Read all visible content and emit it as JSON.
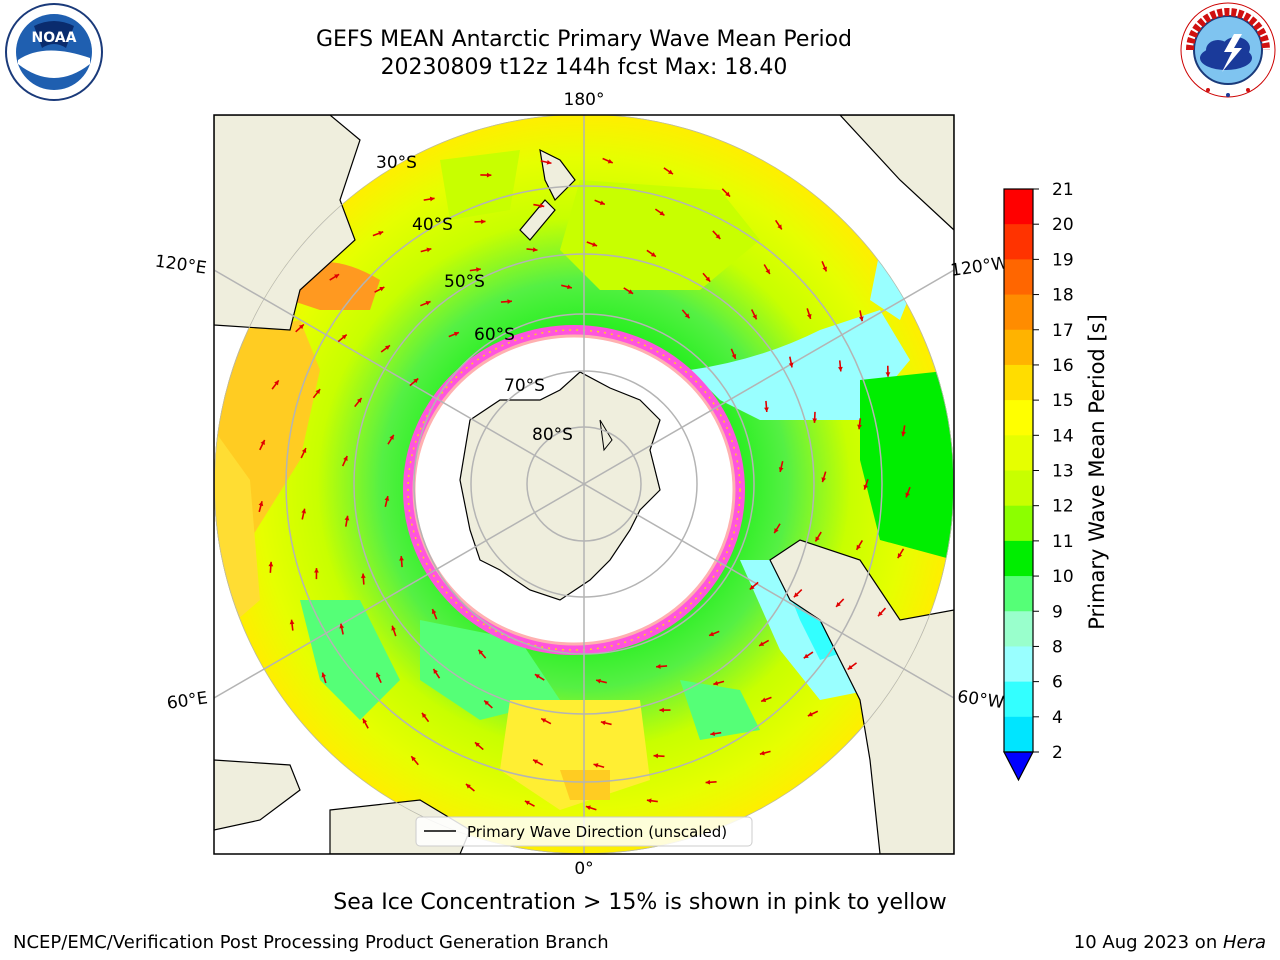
{
  "title": {
    "line1": "GEFS MEAN Antarctic Primary Wave Mean Period",
    "line2": "20230809 t12z 144h fcst   Max: 18.40"
  },
  "logos": {
    "left": {
      "icon": "noaa-logo",
      "text": "NOAA",
      "ring_text": "NATIONAL OCEANIC AND ATMOSPHERIC ADMINISTRATION · U.S. DEPARTMENT OF COMMERCE"
    },
    "right": {
      "icon": "nws-logo",
      "ring_text": "NATIONAL WEATHER SERVICE"
    }
  },
  "map": {
    "projection": "south-polar-stereographic",
    "longitude_labels": [
      "180°",
      "120°E",
      "120°W",
      "60°E",
      "60°W",
      "0°"
    ],
    "latitude_labels": [
      "30°S",
      "40°S",
      "50°S",
      "60°S",
      "70°S",
      "80°S"
    ],
    "legend": "Primary Wave Direction (unscaled)"
  },
  "colorbar": {
    "label": "Primary Wave Mean Period [s]",
    "ticks": [
      "21",
      "20",
      "19",
      "18",
      "17",
      "16",
      "15",
      "14",
      "13",
      "12",
      "11",
      "10",
      "9",
      "8",
      "6",
      "4",
      "2"
    ],
    "colors": [
      "#ff0000",
      "#ff3300",
      "#ff6600",
      "#ff8c00",
      "#ffb300",
      "#ffdd00",
      "#ffff00",
      "#e6ff00",
      "#c8ff00",
      "#8cff00",
      "#00ee00",
      "#55ff77",
      "#99ffcc",
      "#99ffff",
      "#33ffff",
      "#00e5ff",
      "#0099ff",
      "#0055ff"
    ]
  },
  "footer": {
    "note": "Sea Ice Concentration > 15% is shown in pink to yellow",
    "left": "NCEP/EMC/Verification Post Processing Product Generation Branch",
    "right_date": "10 Aug 2023 on ",
    "right_host": "Hera"
  }
}
